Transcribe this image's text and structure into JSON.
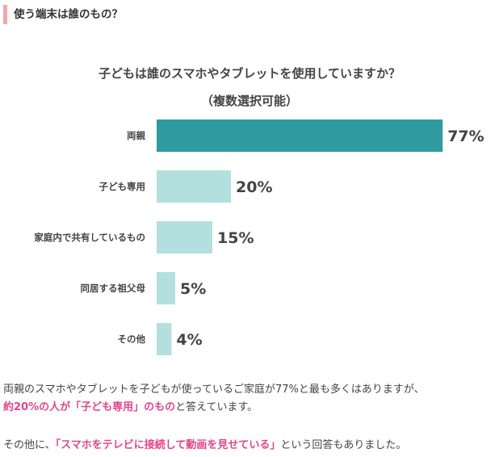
{
  "section": {
    "title": "使う端末は誰のもの？"
  },
  "chart_data": {
    "type": "bar",
    "orientation": "horizontal",
    "title": "子どもは誰のスマホやタブレットを使用していますか？",
    "subtitle": "（複数選択可能）",
    "categories": [
      "両親",
      "子ども専用",
      "家庭内で共有しているもの",
      "同居する祖父母",
      "その他"
    ],
    "values": [
      77,
      20,
      15,
      5,
      4
    ],
    "value_labels": [
      "77%",
      "20%",
      "15%",
      "5%",
      "4%"
    ],
    "highlight_index": 0,
    "colors": {
      "highlight": "#2f9aa0",
      "normal": "#b3e0de"
    },
    "xlim": [
      0,
      100
    ],
    "grid": false
  },
  "text": {
    "p1": "両親のスマホやタブレットを子どもが使っているご家庭が77%と最も多くはありますが、",
    "p2_highlight": "約20%の人が「子ども専用」のもの",
    "p2_rest": "と答えています。",
    "p3_before": "その他に、",
    "p3_highlight": "「スマホをテレビに接続して動画を見せている」",
    "p3_after": "という回答もありました。"
  }
}
